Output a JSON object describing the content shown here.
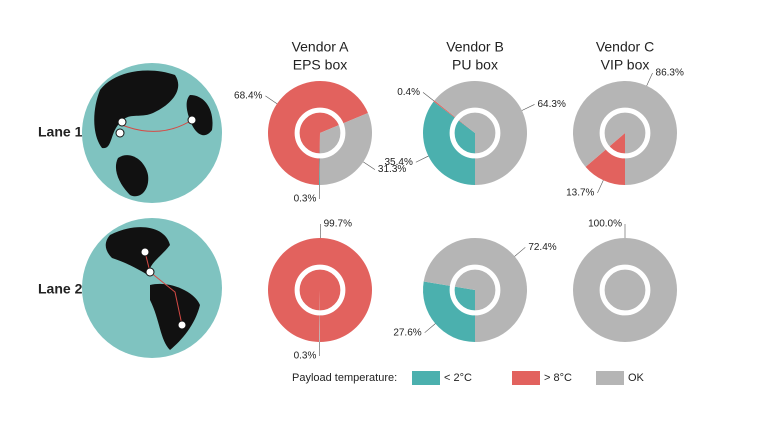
{
  "columns": [
    [
      "Vendor A",
      "EPS box"
    ],
    [
      "Vendor B",
      "PU box"
    ],
    [
      "Vendor C",
      "VIP box"
    ]
  ],
  "rows": [
    "Lane 1",
    "Lane 2"
  ],
  "legend": {
    "title": "Payload temperature:",
    "items": [
      {
        "label": "< 2°C",
        "color": "#4bb0ae"
      },
      {
        "label": "> 8°C",
        "color": "#e2625e"
      },
      {
        "label": "OK",
        "color": "#b5b5b5"
      }
    ]
  },
  "chart_data": [
    {
      "type": "pie",
      "values": [
        0.3,
        68.4,
        31.3
      ],
      "value_labels": [
        "0.3%",
        "68.4%",
        "31.3%"
      ],
      "colors": [
        "#4bb0ae",
        "#e2625e",
        "#b5b5b5"
      ]
    },
    {
      "type": "pie",
      "values": [
        35.4,
        0.4,
        64.3
      ],
      "value_labels": [
        "35.4%",
        "0.4%",
        "64.3%"
      ],
      "colors": [
        "#4bb0ae",
        "#e2625e",
        "#b5b5b5"
      ]
    },
    {
      "type": "pie",
      "values": [
        13.7,
        86.3
      ],
      "value_labels": [
        "13.7%",
        "86.3%"
      ],
      "colors": [
        "#e2625e",
        "#b5b5b5"
      ]
    },
    {
      "type": "pie",
      "values": [
        0.3,
        99.7
      ],
      "value_labels": [
        "0.3%",
        "99.7%"
      ],
      "colors": [
        "#b5b5b5",
        "#e2625e"
      ]
    },
    {
      "type": "pie",
      "values": [
        27.6,
        72.4
      ],
      "value_labels": [
        "27.6%",
        "72.4%"
      ],
      "colors": [
        "#4bb0ae",
        "#b5b5b5"
      ]
    },
    {
      "type": "pie",
      "values": [
        100.0
      ],
      "value_labels": [
        "100.0%"
      ],
      "colors": [
        "#b5b5b5"
      ]
    }
  ]
}
